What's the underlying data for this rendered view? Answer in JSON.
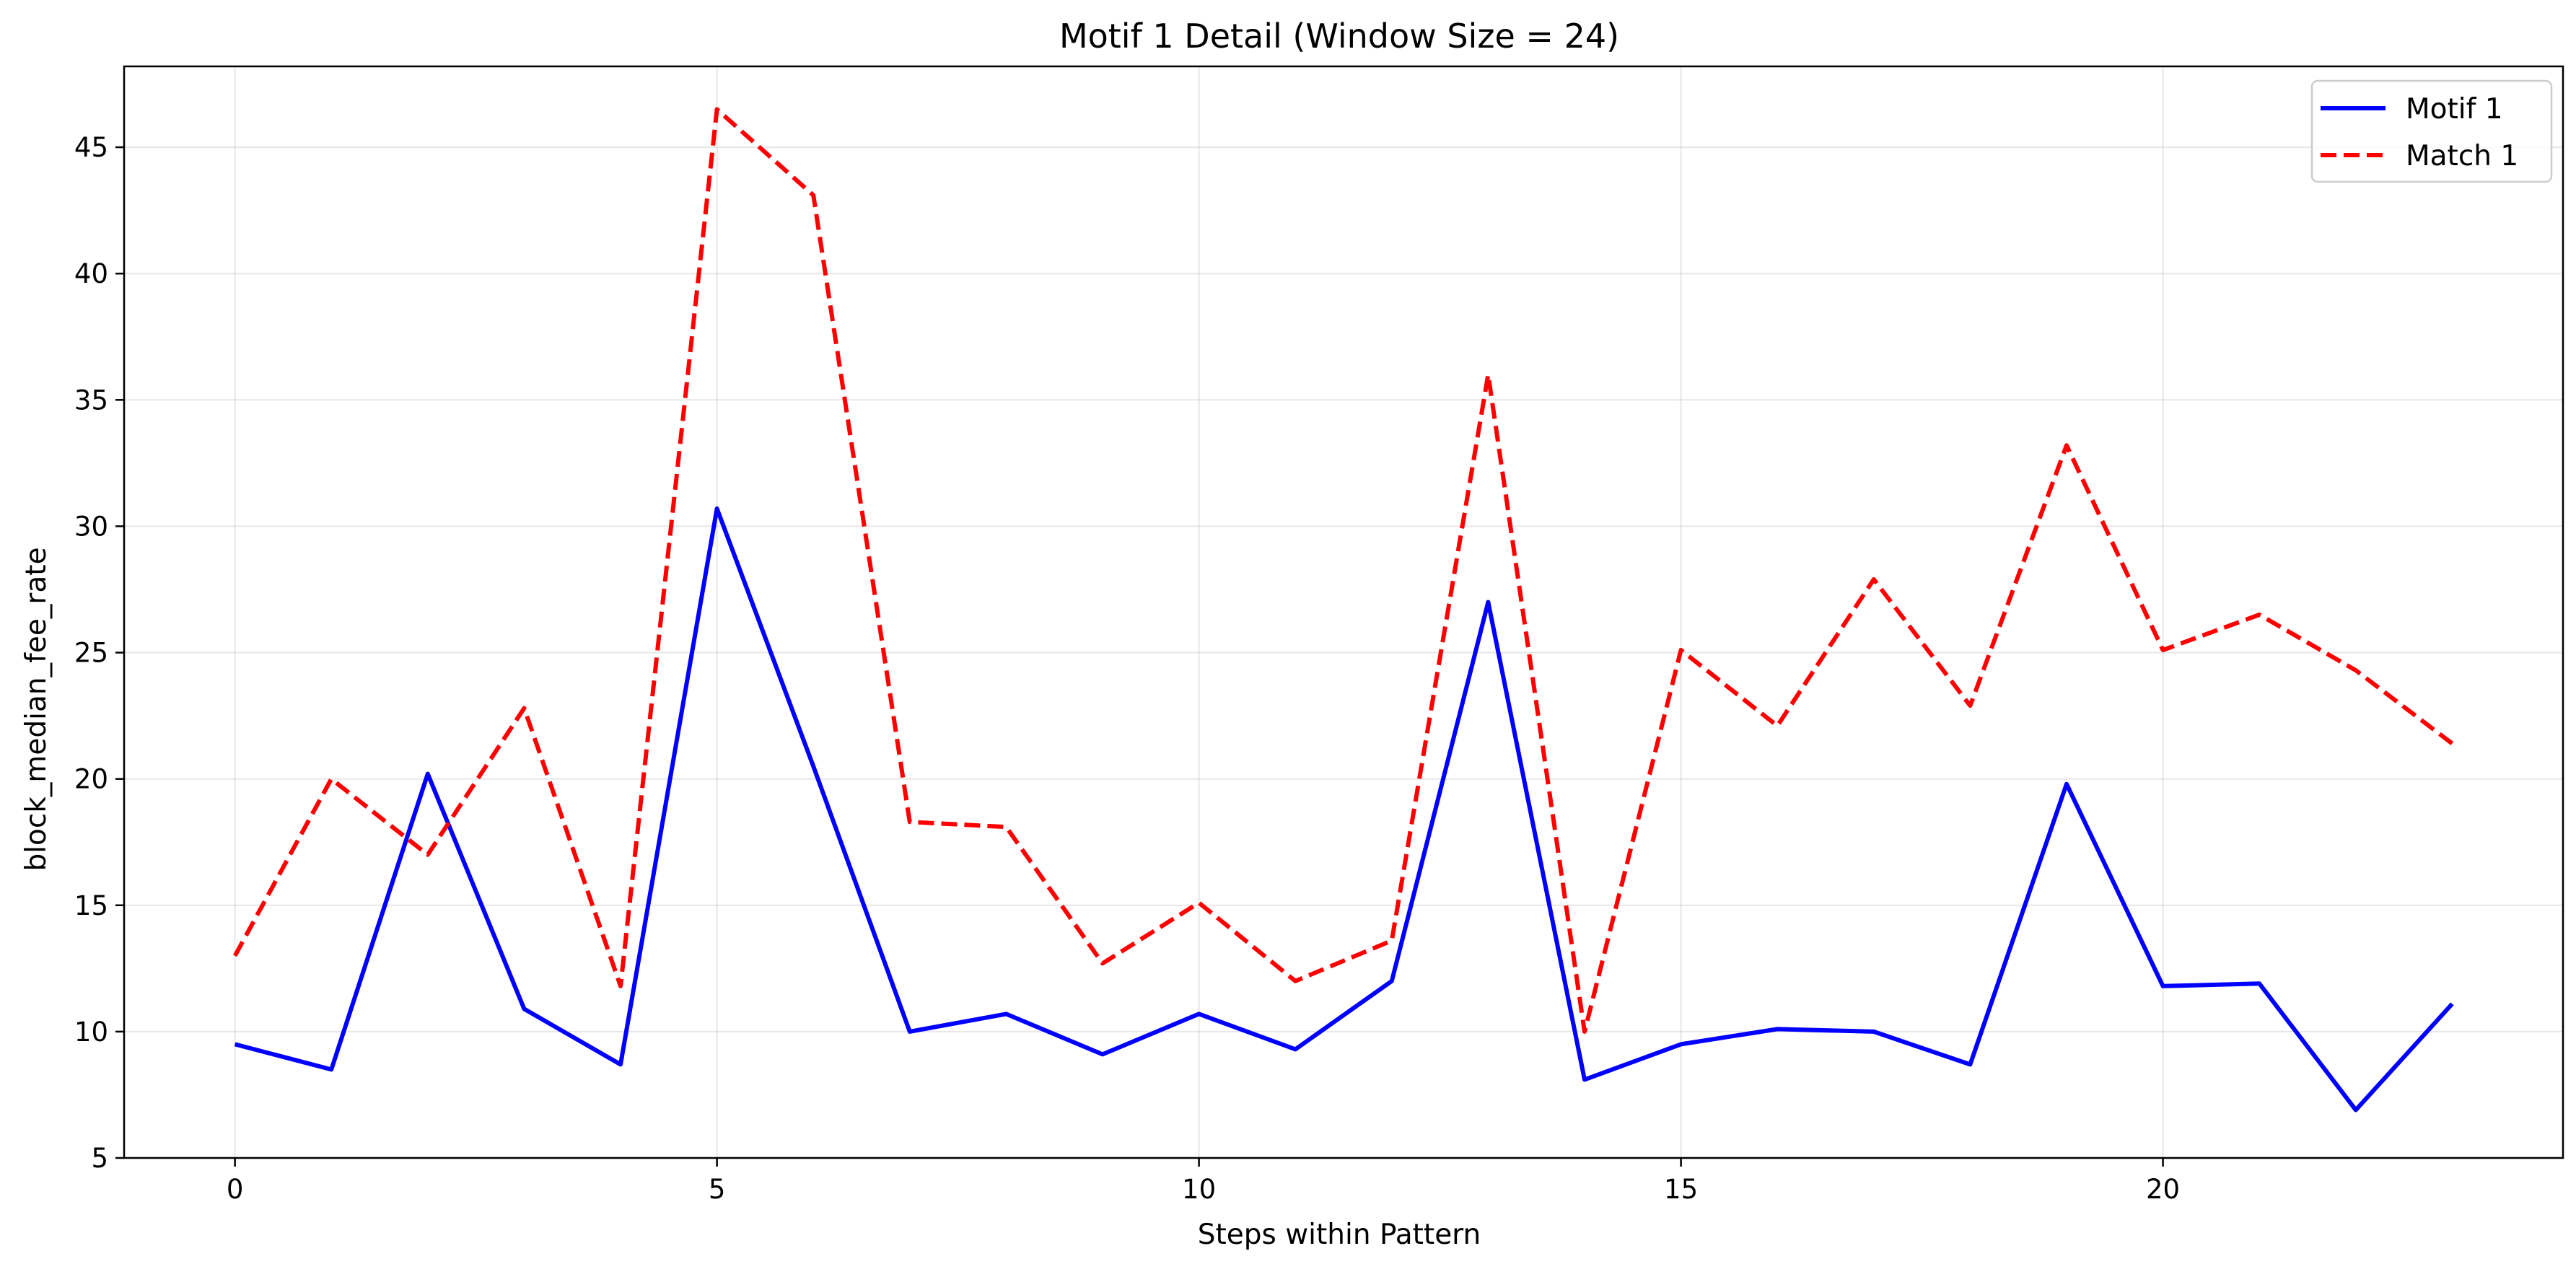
{
  "chart_data": {
    "type": "line",
    "title": "Motif 1 Detail (Window Size = 24)",
    "xlabel": "Steps within Pattern",
    "ylabel": "block_median_fee_rate",
    "xlim": [
      -1.15,
      24.15
    ],
    "ylim": [
      5,
      48.2
    ],
    "x_ticks": [
      0,
      5,
      10,
      15,
      20
    ],
    "y_ticks": [
      5,
      10,
      15,
      20,
      25,
      30,
      35,
      40,
      45
    ],
    "grid": true,
    "legend_position": "top-right",
    "x": [
      0,
      1,
      2,
      3,
      4,
      5,
      6,
      7,
      8,
      9,
      10,
      11,
      12,
      13,
      14,
      15,
      16,
      17,
      18,
      19,
      20,
      21,
      22,
      23
    ],
    "series": [
      {
        "name": "Motif 1",
        "color": "#0000ff",
        "style": "solid",
        "values": [
          9.5,
          8.5,
          20.2,
          10.9,
          8.7,
          30.7,
          20.5,
          10.0,
          10.7,
          9.1,
          10.7,
          9.3,
          12.0,
          27.0,
          8.1,
          9.5,
          10.1,
          10.0,
          8.7,
          19.8,
          11.8,
          11.9,
          6.9,
          11.1
        ]
      },
      {
        "name": "Match 1",
        "color": "#ff0000",
        "style": "dashed",
        "values": [
          13.0,
          20.0,
          17.0,
          22.8,
          11.8,
          46.5,
          43.1,
          18.3,
          18.1,
          12.7,
          15.1,
          12.0,
          13.6,
          36.0,
          10.0,
          25.1,
          22.1,
          27.9,
          22.9,
          33.2,
          25.1,
          26.5,
          24.3,
          21.4
        ]
      }
    ]
  }
}
